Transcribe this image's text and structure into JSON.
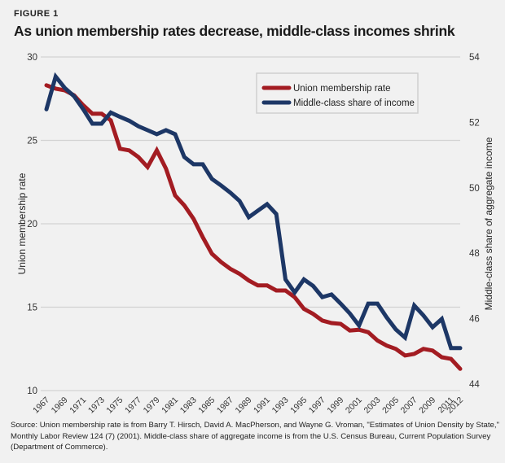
{
  "figure": {
    "label": "FIGURE 1",
    "title": "As union membership rates decrease, middle-class incomes shrink",
    "source": "Source: Union membership rate is from Barry T. Hirsch, David A. MacPherson, and Wayne G. Vroman, \"Estimates of Union Density by State,\" Monthly Labor Review 124 (7) (2001). Middle-class share of aggregate income is from the U.S. Census Bureau, Current Population Survey (Department of Commerce)."
  },
  "chart_data": {
    "type": "line",
    "title": "As union membership rates decrease, middle-class incomes shrink",
    "xlabel": "",
    "ylabel": "Union membership rate",
    "y2label": "Middle-class share of aggregate income",
    "ylim": [
      10,
      30
    ],
    "y2lim": [
      44,
      54
    ],
    "yticks": [
      10,
      15,
      20,
      25,
      30
    ],
    "y2ticks": [
      44,
      46,
      48,
      50,
      52,
      54
    ],
    "grid": true,
    "legend_position": "top-right",
    "x": [
      1967,
      1968,
      1969,
      1970,
      1971,
      1972,
      1973,
      1974,
      1975,
      1976,
      1977,
      1978,
      1979,
      1980,
      1981,
      1982,
      1983,
      1984,
      1985,
      1986,
      1987,
      1988,
      1989,
      1990,
      1991,
      1992,
      1993,
      1994,
      1995,
      1996,
      1997,
      1998,
      1999,
      2000,
      2001,
      2002,
      2003,
      2004,
      2005,
      2006,
      2007,
      2008,
      2009,
      2010,
      2011,
      2012
    ],
    "xticks": [
      "1967",
      "1969",
      "1971",
      "1973",
      "1975",
      "1977",
      "1979",
      "1981",
      "1983",
      "1985",
      "1987",
      "1989",
      "1991",
      "1993",
      "1995",
      "1997",
      "1999",
      "2001",
      "2003",
      "2005",
      "2007",
      "2009",
      "2011",
      "2012"
    ],
    "series": [
      {
        "name": "Union membership rate",
        "axis": "left",
        "color": "#a31c22",
        "values": [
          28.3,
          28.1,
          28.0,
          27.7,
          27.1,
          26.6,
          26.6,
          26.2,
          24.5,
          24.4,
          24.0,
          23.4,
          24.4,
          23.3,
          21.7,
          21.1,
          20.3,
          19.2,
          18.2,
          17.7,
          17.3,
          17.0,
          16.6,
          16.3,
          16.3,
          16.0,
          16.0,
          15.6,
          14.9,
          14.6,
          14.2,
          14.05,
          14.0,
          13.6,
          13.65,
          13.5,
          13.0,
          12.7,
          12.5,
          12.1,
          12.2,
          12.5,
          12.4,
          12.0,
          11.9,
          11.3
        ]
      },
      {
        "name": "Middle-class share of income",
        "axis": "right",
        "color": "#1d3766",
        "values": [
          52.4,
          53.4,
          53.05,
          52.8,
          52.4,
          51.96,
          51.96,
          52.3,
          52.17,
          52.05,
          51.88,
          51.76,
          51.64,
          51.76,
          51.64,
          50.94,
          50.72,
          50.72,
          50.27,
          50.07,
          49.85,
          49.6,
          49.1,
          49.3,
          49.5,
          49.2,
          47.2,
          46.8,
          47.2,
          47.0,
          46.66,
          46.74,
          46.46,
          46.16,
          45.79,
          46.46,
          46.46,
          46.04,
          45.67,
          45.42,
          46.4,
          46.1,
          45.74,
          45.99,
          45.1,
          45.1
        ]
      }
    ]
  }
}
